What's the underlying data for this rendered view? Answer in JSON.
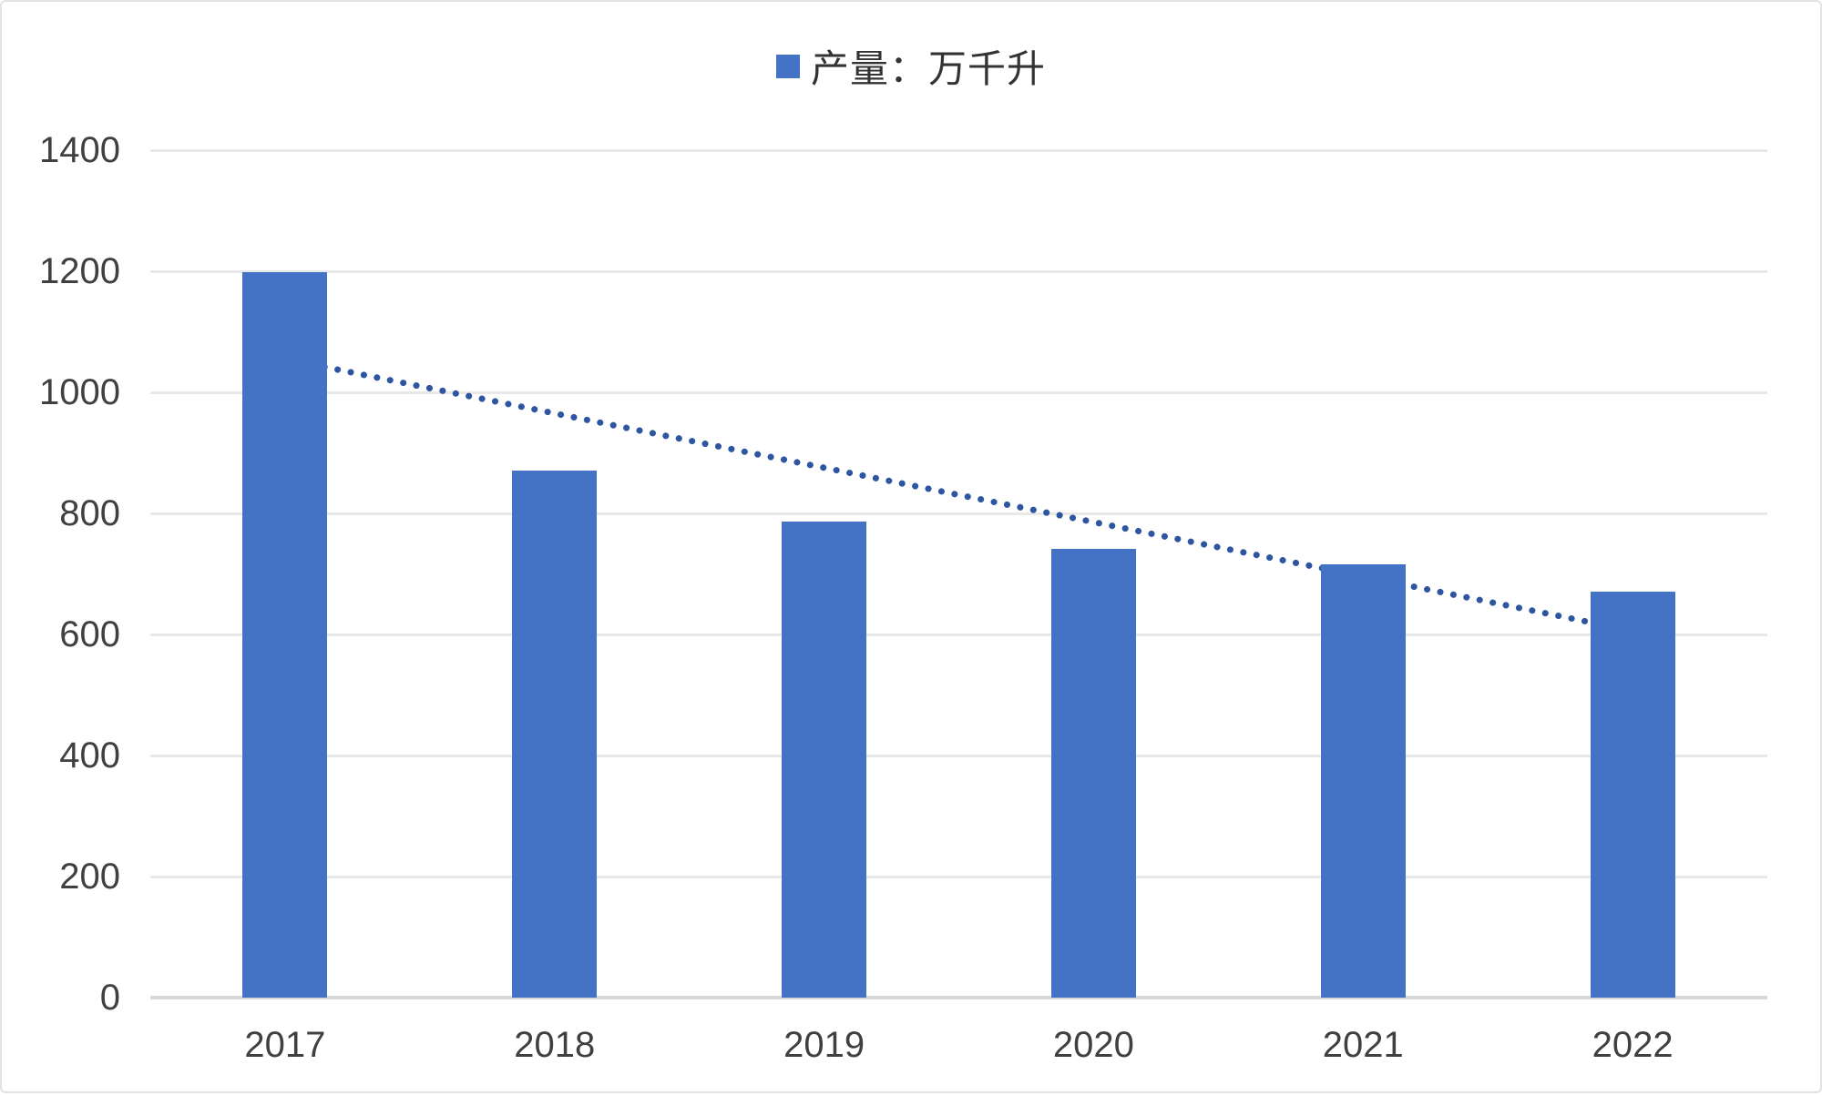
{
  "legend": {
    "label": "产量：万千升",
    "swatch_color": "#4472C4"
  },
  "chart_data": {
    "type": "bar",
    "title": "",
    "xlabel": "",
    "ylabel": "",
    "categories": [
      "2017",
      "2018",
      "2019",
      "2020",
      "2021",
      "2022"
    ],
    "series": [
      {
        "name": "产量：万千升",
        "values": [
          1198,
          871,
          786,
          741,
          716,
          671
        ]
      }
    ],
    "bar_color": "#4472C4",
    "ylim": [
      0,
      1400
    ],
    "yticks": [
      0,
      200,
      400,
      600,
      800,
      1000,
      1200,
      1400
    ],
    "grid": true,
    "legend_position": "top-center",
    "trendline": {
      "type": "linear",
      "style": "dotted",
      "start_value": 1055,
      "end_value": 606,
      "color": "#2E56A0"
    }
  },
  "colors": {
    "gridline": "#e8e8e8",
    "axis_line": "#d8d8d8",
    "tick_text": "#404040",
    "frame_border": "#e2e2e2",
    "background": "#ffffff"
  }
}
